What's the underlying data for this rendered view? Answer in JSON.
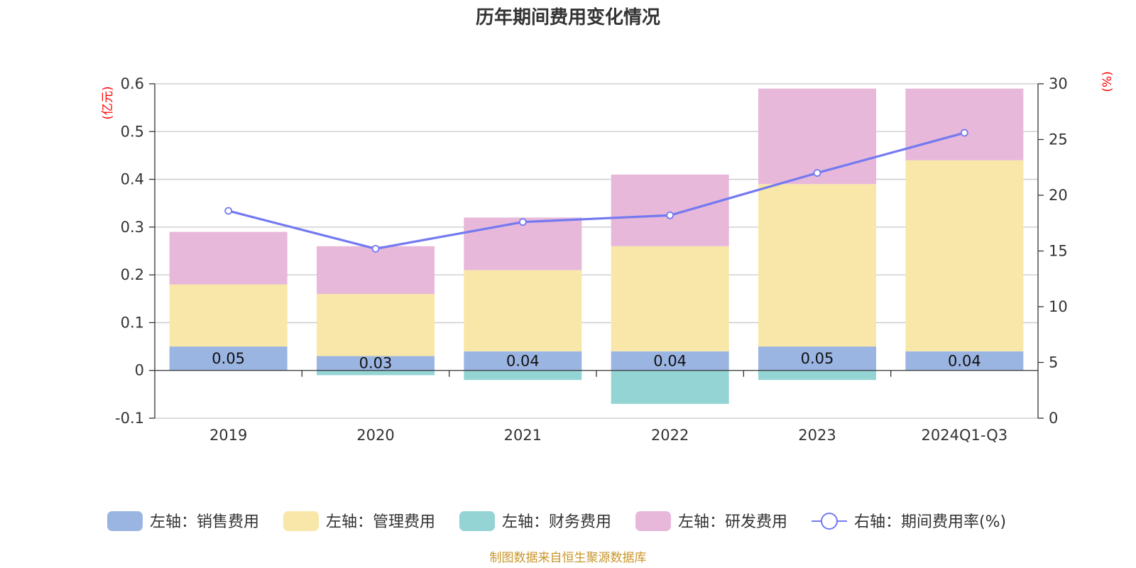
{
  "colors": {
    "sales": "#9bb5e2",
    "admin": "#f8e7a8",
    "finance": "#95d4d4",
    "rd": "#e7b8da",
    "rate": "#7379f0",
    "unit": "#ff0000",
    "source": "#c8962a"
  },
  "chart_data": {
    "type": "bar",
    "stacked": true,
    "title": "历年期间费用变化情况",
    "categories": [
      "2019",
      "2020",
      "2021",
      "2022",
      "2023",
      "2024Q1-Q3"
    ],
    "left_axis": {
      "unit": "(亿元)",
      "ylim": [
        -0.1,
        0.6
      ],
      "ticks": [
        -0.1,
        0,
        0.1,
        0.2,
        0.3,
        0.4,
        0.5,
        0.6
      ],
      "tick_labels": [
        "-0.1",
        "0",
        "0.1",
        "0.2",
        "0.3",
        "0.4",
        "0.5",
        "0.6"
      ]
    },
    "right_axis": {
      "unit": "(%)",
      "ylim": [
        0,
        30
      ],
      "ticks": [
        0,
        5,
        10,
        15,
        20,
        25,
        30
      ],
      "tick_labels": [
        "0",
        "5",
        "10",
        "15",
        "20",
        "25",
        "30"
      ]
    },
    "series": [
      {
        "name": "左轴：销售费用",
        "axis": "left",
        "type": "bar",
        "color_key": "sales",
        "values": [
          0.05,
          0.03,
          0.04,
          0.04,
          0.05,
          0.04
        ],
        "labels": [
          "0.05",
          "0.03",
          "0.04",
          "0.04",
          "0.05",
          "0.04"
        ]
      },
      {
        "name": "左轴：管理费用",
        "axis": "left",
        "type": "bar",
        "color_key": "admin",
        "values": [
          0.13,
          0.13,
          0.17,
          0.22,
          0.34,
          0.4
        ]
      },
      {
        "name": "左轴：财务费用",
        "axis": "left",
        "type": "bar",
        "color_key": "finance",
        "values": [
          0.0,
          -0.01,
          -0.02,
          -0.07,
          -0.02,
          0.0
        ]
      },
      {
        "name": "左轴：研发费用",
        "axis": "left",
        "type": "bar",
        "color_key": "rd",
        "values": [
          0.11,
          0.1,
          0.11,
          0.15,
          0.2,
          0.15
        ]
      },
      {
        "name": "右轴：期间费用率(%)",
        "axis": "right",
        "type": "line",
        "color_key": "rate",
        "values": [
          18.6,
          15.2,
          17.6,
          18.2,
          22.0,
          25.6
        ]
      }
    ],
    "grid": true,
    "legend_position": "bottom"
  },
  "source_note": "制图数据来自恒生聚源数据库"
}
